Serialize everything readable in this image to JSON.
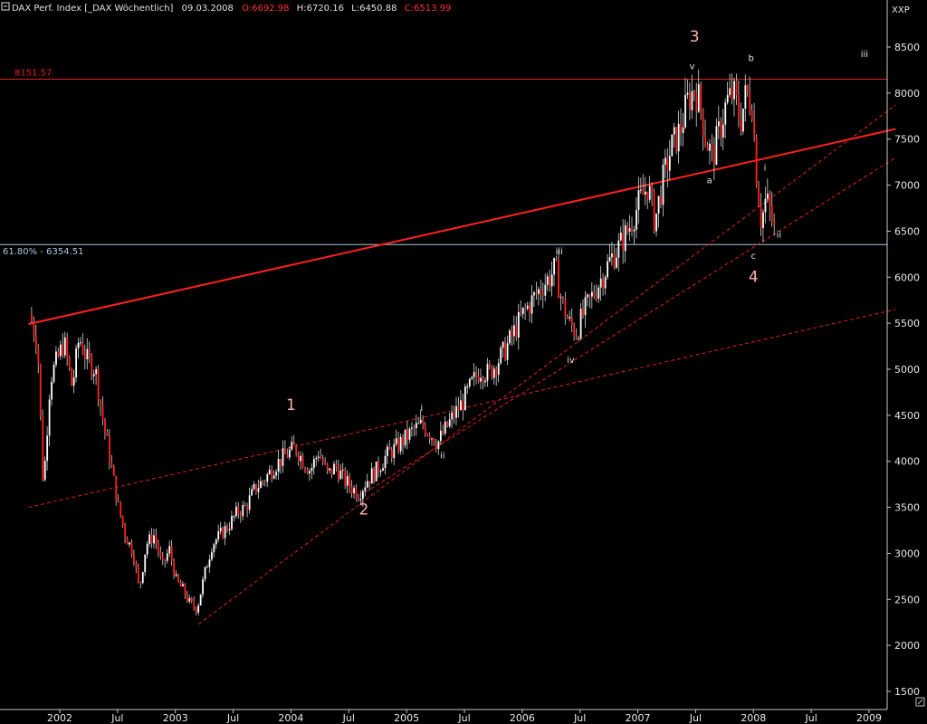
{
  "header": {
    "name": "DAX Perf. Index [_DAX  Wöchentlich]",
    "date": "09.03.2008",
    "open": "O:6692.98",
    "high": "H:6720.16",
    "low": "L:6450.88",
    "close": "C:6513.99"
  },
  "chart_data": {
    "type": "candlestick",
    "y_axis_label": "XXP",
    "ylim": [
      1350,
      8800
    ],
    "xlim": [
      2001.73,
      2009.23
    ],
    "y_ticks": [
      1500,
      2000,
      2500,
      3000,
      3500,
      4000,
      4500,
      5000,
      5500,
      6000,
      6500,
      7000,
      7500,
      8000,
      8500
    ],
    "x_ticks": [
      {
        "label": "2002",
        "x": 2002.0
      },
      {
        "label": "Jul",
        "x": 2002.5
      },
      {
        "label": "2003",
        "x": 2003.0
      },
      {
        "label": "Jul",
        "x": 2003.5
      },
      {
        "label": "2004",
        "x": 2004.0
      },
      {
        "label": "Jul",
        "x": 2004.5
      },
      {
        "label": "2005",
        "x": 2005.0
      },
      {
        "label": "Jul",
        "x": 2005.5
      },
      {
        "label": "2006",
        "x": 2006.0
      },
      {
        "label": "Jul",
        "x": 2006.5
      },
      {
        "label": "2007",
        "x": 2007.0
      },
      {
        "label": "Jul",
        "x": 2007.5
      },
      {
        "label": "2008",
        "x": 2008.0
      },
      {
        "label": "Jul",
        "x": 2008.5
      },
      {
        "label": "2009",
        "x": 2009.0
      }
    ],
    "price_path": [
      [
        2001.75,
        5600
      ],
      [
        2001.82,
        5300
      ],
      [
        2001.87,
        3700
      ],
      [
        2001.93,
        4900
      ],
      [
        2002.05,
        5300
      ],
      [
        2002.12,
        4800
      ],
      [
        2002.18,
        5350
      ],
      [
        2002.25,
        5100
      ],
      [
        2002.32,
        5000
      ],
      [
        2002.38,
        4500
      ],
      [
        2002.45,
        4000
      ],
      [
        2002.52,
        3500
      ],
      [
        2002.58,
        3200
      ],
      [
        2002.65,
        3000
      ],
      [
        2002.7,
        2600
      ],
      [
        2002.76,
        3100
      ],
      [
        2002.83,
        3200
      ],
      [
        2002.9,
        2850
      ],
      [
        2002.96,
        3050
      ],
      [
        2003.02,
        2700
      ],
      [
        2003.08,
        2600
      ],
      [
        2003.14,
        2450
      ],
      [
        2003.2,
        2400
      ],
      [
        2003.27,
        2800
      ],
      [
        2003.33,
        3100
      ],
      [
        2003.4,
        3200
      ],
      [
        2003.47,
        3300
      ],
      [
        2003.55,
        3450
      ],
      [
        2003.62,
        3500
      ],
      [
        2003.7,
        3700
      ],
      [
        2003.78,
        3800
      ],
      [
        2003.87,
        3950
      ],
      [
        2003.95,
        4050
      ],
      [
        2004.05,
        4150
      ],
      [
        2004.12,
        4000
      ],
      [
        2004.18,
        3900
      ],
      [
        2004.25,
        4100
      ],
      [
        2004.33,
        3850
      ],
      [
        2004.4,
        3950
      ],
      [
        2004.47,
        3800
      ],
      [
        2004.55,
        3700
      ],
      [
        2004.6,
        3650
      ],
      [
        2004.67,
        3800
      ],
      [
        2004.75,
        3900
      ],
      [
        2004.83,
        4050
      ],
      [
        2004.92,
        4150
      ],
      [
        2005.0,
        4250
      ],
      [
        2005.08,
        4350
      ],
      [
        2005.15,
        4400
      ],
      [
        2005.22,
        4300
      ],
      [
        2005.28,
        4200
      ],
      [
        2005.35,
        4350
      ],
      [
        2005.42,
        4500
      ],
      [
        2005.5,
        4650
      ],
      [
        2005.58,
        4850
      ],
      [
        2005.65,
        5000
      ],
      [
        2005.72,
        4950
      ],
      [
        2005.78,
        5050
      ],
      [
        2005.86,
        5200
      ],
      [
        2005.94,
        5400
      ],
      [
        2006.02,
        5600
      ],
      [
        2006.1,
        5750
      ],
      [
        2006.18,
        5900
      ],
      [
        2006.25,
        6000
      ],
      [
        2006.3,
        6100
      ],
      [
        2006.36,
        5700
      ],
      [
        2006.42,
        5500
      ],
      [
        2006.48,
        5400
      ],
      [
        2006.54,
        5600
      ],
      [
        2006.62,
        5800
      ],
      [
        2006.7,
        6000
      ],
      [
        2006.78,
        6200
      ],
      [
        2006.86,
        6350
      ],
      [
        2006.94,
        6550
      ],
      [
        2007.02,
        6800
      ],
      [
        2007.1,
        7000
      ],
      [
        2007.16,
        6600
      ],
      [
        2007.22,
        7000
      ],
      [
        2007.3,
        7400
      ],
      [
        2007.38,
        7600
      ],
      [
        2007.44,
        7900
      ],
      [
        2007.5,
        8050
      ],
      [
        2007.55,
        7900
      ],
      [
        2007.6,
        7500
      ],
      [
        2007.66,
        7300
      ],
      [
        2007.72,
        7600
      ],
      [
        2007.78,
        7900
      ],
      [
        2007.84,
        8000
      ],
      [
        2007.9,
        7700
      ],
      [
        2007.95,
        8000
      ],
      [
        2008.0,
        7900
      ],
      [
        2008.04,
        7100
      ],
      [
        2008.08,
        6600
      ],
      [
        2008.12,
        6850
      ],
      [
        2008.16,
        6700
      ],
      [
        2008.19,
        6500
      ]
    ],
    "reference_lines": [
      {
        "label": "8151.57",
        "value": 8151.57,
        "color": "#e02020"
      },
      {
        "label": "61.80% - 6354.51",
        "value": 6354.51,
        "color": "#a8c8e0"
      }
    ],
    "trend_lines": [
      {
        "style": "solid",
        "points": [
          [
            2001.73,
            5490
          ],
          [
            2009.23,
            7610
          ]
        ],
        "color": "#ff2020"
      },
      {
        "style": "dashed",
        "points": [
          [
            2001.73,
            3500
          ],
          [
            2009.23,
            5650
          ]
        ],
        "color": "#e02020"
      },
      {
        "style": "dashed",
        "points": [
          [
            2003.2,
            2230
          ],
          [
            2009.23,
            7870
          ]
        ],
        "color": "#e02020"
      },
      {
        "style": "dashed",
        "points": [
          [
            2004.6,
            3630
          ],
          [
            2009.23,
            7300
          ]
        ],
        "color": "#e02020"
      }
    ],
    "wave_labels": [
      {
        "text": "1",
        "x": 2004.0,
        "y": 4560,
        "size": "major",
        "color": "#ffb0b0"
      },
      {
        "text": "2",
        "x": 2004.63,
        "y": 3420,
        "size": "major",
        "color": "#ffb0b0"
      },
      {
        "text": "3",
        "x": 2007.49,
        "y": 8560,
        "size": "major",
        "color": "#ffb0b0"
      },
      {
        "text": "4",
        "x": 2008.0,
        "y": 5950,
        "size": "major",
        "color": "#ffb0b0"
      },
      {
        "text": "i",
        "x": 2005.13,
        "y": 4550,
        "size": "minor",
        "color": "#e0e0e0"
      },
      {
        "text": "ii",
        "x": 2005.31,
        "y": 4030,
        "size": "minor",
        "color": "#e0e0e0"
      },
      {
        "text": "iii",
        "x": 2006.32,
        "y": 6250,
        "size": "minor",
        "color": "#e0e0e0"
      },
      {
        "text": "iv",
        "x": 2006.42,
        "y": 5070,
        "size": "minor",
        "color": "#e0e0e0"
      },
      {
        "text": "v",
        "x": 2007.47,
        "y": 8260,
        "size": "minor",
        "color": "#e0e0e0"
      },
      {
        "text": "a",
        "x": 2007.62,
        "y": 7020,
        "size": "minor",
        "color": "#e0e0e0"
      },
      {
        "text": "b",
        "x": 2007.98,
        "y": 8350,
        "size": "minor",
        "color": "#e0e0e0"
      },
      {
        "text": "c",
        "x": 2008.0,
        "y": 6200,
        "size": "minor",
        "color": "#e0e0e0"
      },
      {
        "text": "i",
        "x": 2008.1,
        "y": 7160,
        "size": "minor",
        "color": "#e0e0e0"
      },
      {
        "text": "ii",
        "x": 2008.22,
        "y": 6430,
        "size": "minor",
        "color": "#e0e0e0"
      },
      {
        "text": "iii",
        "x": 2008.96,
        "y": 8390,
        "size": "minor",
        "color": "#e0e0e0"
      }
    ],
    "colors": {
      "background": "#000000",
      "axis_text": "#e8e8e8",
      "up_candle": "#ffffff",
      "down_candle": "#ff2020",
      "wick": "#d8d8d8"
    }
  }
}
